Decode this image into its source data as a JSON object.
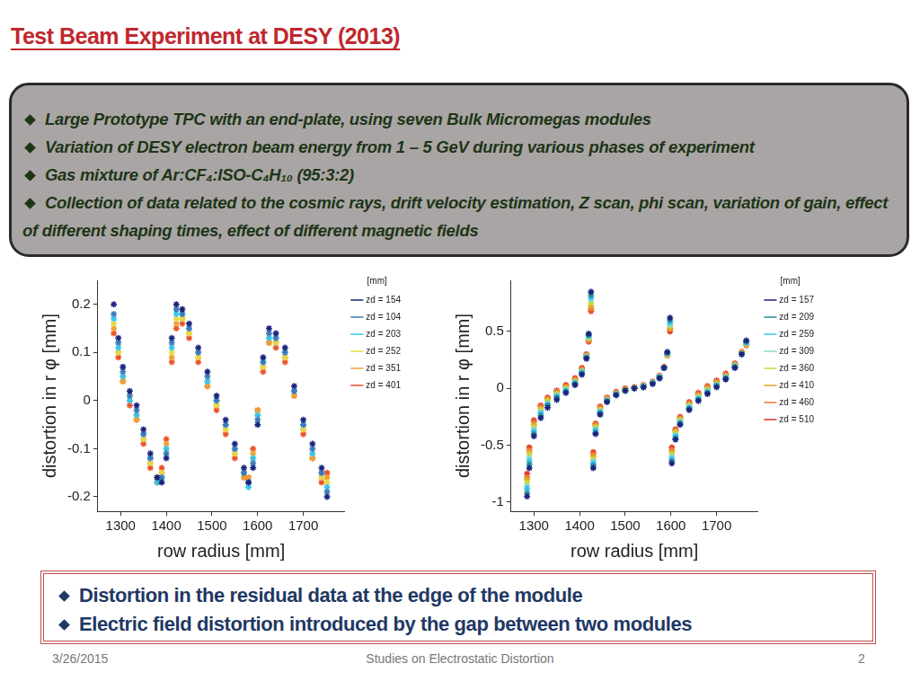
{
  "title": "Test Beam Experiment at DESY (2013)",
  "bullets": [
    "Large Prototype TPC with an end-plate, using seven Bulk Micromegas modules",
    "Variation of DESY electron beam energy from 1 – 5 GeV during various phases of experiment",
    "Gas mixture of Ar:CF₄:ISO-C₄H₁₀ (95:3:2)",
    "Collection of data related to the cosmic rays, drift velocity estimation, Z scan, phi scan, variation of gain, effect of different shaping times, effect of different magnetic fields"
  ],
  "conclusions": [
    "Distortion in the residual data at the edge of the module",
    "Electric field distortion introduced by the gap between two modules"
  ],
  "footer": {
    "date": "3/26/2015",
    "center": "Studies on Electrostatic Distortion",
    "page": "2"
  },
  "chart_data": [
    {
      "type": "scatter",
      "x_label": "row radius [mm]",
      "y_label": "distortion in r φ [mm]",
      "xlim": [
        1250,
        1790
      ],
      "xticks": [
        1300,
        1400,
        1500,
        1600,
        1700
      ],
      "ylim": [
        -0.23,
        0.25
      ],
      "yticks": [
        -0.2,
        -0.1,
        0,
        0.1,
        0.2
      ],
      "grid": false,
      "legend": "right",
      "legend_title": "[mm]",
      "marker": "star",
      "x": [
        1285,
        1295,
        1305,
        1320,
        1335,
        1350,
        1365,
        1380,
        1390,
        1400,
        1412,
        1422,
        1435,
        1450,
        1470,
        1490,
        1510,
        1530,
        1550,
        1570,
        1580,
        1590,
        1600,
        1612,
        1625,
        1640,
        1660,
        1680,
        1700,
        1720,
        1740,
        1752
      ],
      "series": [
        {
          "name": "zd = 154",
          "color": "#1a237e",
          "values": [
            0.2,
            0.13,
            0.07,
            0.02,
            -0.01,
            -0.06,
            -0.11,
            -0.16,
            -0.17,
            -0.12,
            0.13,
            0.2,
            0.19,
            0.16,
            0.11,
            0.06,
            0.01,
            -0.04,
            -0.09,
            -0.14,
            -0.17,
            -0.14,
            -0.05,
            0.09,
            0.15,
            0.14,
            0.11,
            0.03,
            -0.04,
            -0.09,
            -0.14,
            -0.2
          ]
        },
        {
          "name": "zd = 104",
          "color": "#3a7ab8",
          "values": [
            0.18,
            0.12,
            0.06,
            0.01,
            -0.02,
            -0.07,
            -0.12,
            -0.16,
            -0.16,
            -0.11,
            0.12,
            0.19,
            0.18,
            0.15,
            0.1,
            0.05,
            0.0,
            -0.05,
            -0.1,
            -0.15,
            -0.17,
            -0.13,
            -0.04,
            0.08,
            0.14,
            0.13,
            0.1,
            0.02,
            -0.05,
            -0.1,
            -0.15,
            -0.19
          ]
        },
        {
          "name": "zd = 203",
          "color": "#33c4ee",
          "values": [
            0.17,
            0.11,
            0.05,
            0.0,
            -0.03,
            -0.07,
            -0.12,
            -0.17,
            -0.16,
            -0.1,
            0.11,
            0.18,
            0.18,
            0.15,
            0.1,
            0.04,
            0.0,
            -0.05,
            -0.1,
            -0.15,
            -0.18,
            -0.12,
            -0.03,
            0.08,
            0.13,
            0.13,
            0.1,
            0.02,
            -0.05,
            -0.11,
            -0.15,
            -0.18
          ]
        },
        {
          "name": "zd = 252",
          "color": "#e8d844",
          "values": [
            0.16,
            0.1,
            0.05,
            0.01,
            -0.03,
            -0.08,
            -0.13,
            -0.17,
            -0.15,
            -0.1,
            0.1,
            0.17,
            0.17,
            0.14,
            0.09,
            0.04,
            -0.01,
            -0.06,
            -0.11,
            -0.15,
            -0.17,
            -0.12,
            -0.03,
            0.07,
            0.13,
            0.12,
            0.09,
            0.02,
            -0.06,
            -0.11,
            -0.16,
            -0.17
          ]
        },
        {
          "name": "zd = 351",
          "color": "#f0a030",
          "values": [
            0.15,
            0.1,
            0.04,
            0.0,
            -0.04,
            -0.08,
            -0.13,
            -0.16,
            -0.15,
            -0.09,
            0.09,
            0.16,
            0.17,
            0.14,
            0.09,
            0.03,
            -0.01,
            -0.06,
            -0.11,
            -0.16,
            -0.16,
            -0.11,
            -0.02,
            0.07,
            0.12,
            0.12,
            0.09,
            0.01,
            -0.06,
            -0.12,
            -0.16,
            -0.16
          ]
        },
        {
          "name": "zd = 401",
          "color": "#e8532a",
          "values": [
            0.14,
            0.09,
            0.04,
            -0.01,
            -0.04,
            -0.09,
            -0.14,
            -0.17,
            -0.14,
            -0.08,
            0.08,
            0.15,
            0.16,
            0.13,
            0.08,
            0.03,
            -0.02,
            -0.07,
            -0.12,
            -0.16,
            -0.16,
            -0.1,
            -0.02,
            0.06,
            0.12,
            0.11,
            0.08,
            0.01,
            -0.07,
            -0.12,
            -0.17,
            -0.15
          ]
        }
      ]
    },
    {
      "type": "scatter",
      "x_label": "row radius [mm]",
      "y_label": "distortion in r φ [mm]",
      "xlim": [
        1250,
        1790
      ],
      "xticks": [
        1300,
        1400,
        1500,
        1600,
        1700
      ],
      "ylim": [
        -1.08,
        0.95
      ],
      "yticks": [
        -1,
        -0.5,
        0,
        0.5
      ],
      "grid": false,
      "legend": "right",
      "legend_title": "[mm]",
      "marker": "star",
      "x": [
        1285,
        1290,
        1300,
        1315,
        1330,
        1350,
        1370,
        1390,
        1405,
        1415,
        1420,
        1425,
        1430,
        1435,
        1445,
        1460,
        1480,
        1500,
        1520,
        1540,
        1560,
        1575,
        1585,
        1592,
        1598,
        1602,
        1610,
        1620,
        1640,
        1660,
        1680,
        1700,
        1720,
        1740,
        1755,
        1765
      ],
      "series": [
        {
          "name": "zd = 157",
          "color": "#1a237e",
          "values": [
            -0.95,
            -0.7,
            -0.42,
            -0.26,
            -0.17,
            -0.1,
            -0.04,
            0.03,
            0.12,
            0.26,
            0.48,
            0.85,
            -0.7,
            -0.4,
            -0.23,
            -0.12,
            -0.06,
            -0.02,
            0.0,
            0.01,
            0.04,
            0.09,
            0.18,
            0.32,
            0.62,
            -0.66,
            -0.45,
            -0.32,
            -0.19,
            -0.11,
            -0.05,
            0.01,
            0.08,
            0.18,
            0.3,
            0.42
          ]
        },
        {
          "name": "zd = 209",
          "color": "#2a8a9a",
          "values": [
            -0.92,
            -0.67,
            -0.4,
            -0.24,
            -0.15,
            -0.08,
            -0.03,
            0.04,
            0.13,
            0.27,
            0.47,
            0.82,
            -0.68,
            -0.39,
            -0.22,
            -0.11,
            -0.06,
            -0.02,
            0.0,
            0.01,
            0.04,
            0.09,
            0.18,
            0.31,
            0.6,
            -0.64,
            -0.44,
            -0.31,
            -0.18,
            -0.1,
            -0.04,
            0.02,
            0.09,
            0.19,
            0.3,
            0.41
          ]
        },
        {
          "name": "zd = 259",
          "color": "#33c4ee",
          "values": [
            -0.88,
            -0.64,
            -0.38,
            -0.22,
            -0.14,
            -0.07,
            -0.02,
            0.05,
            0.14,
            0.27,
            0.46,
            0.8,
            -0.66,
            -0.37,
            -0.21,
            -0.11,
            -0.05,
            -0.02,
            0.0,
            0.02,
            0.05,
            0.1,
            0.18,
            0.31,
            0.58,
            -0.62,
            -0.42,
            -0.3,
            -0.17,
            -0.09,
            -0.03,
            0.03,
            0.09,
            0.19,
            0.3,
            0.4
          ]
        },
        {
          "name": "zd = 309",
          "color": "#88d8d0",
          "values": [
            -0.86,
            -0.61,
            -0.36,
            -0.21,
            -0.13,
            -0.06,
            -0.01,
            0.05,
            0.15,
            0.28,
            0.45,
            0.78,
            -0.64,
            -0.36,
            -0.2,
            -0.1,
            -0.05,
            -0.02,
            0.0,
            0.02,
            0.05,
            0.1,
            0.18,
            0.3,
            0.56,
            -0.6,
            -0.41,
            -0.29,
            -0.16,
            -0.08,
            -0.02,
            0.03,
            0.1,
            0.2,
            0.3,
            0.4
          ]
        },
        {
          "name": "zd = 360",
          "color": "#d4d433",
          "values": [
            -0.83,
            -0.58,
            -0.34,
            -0.19,
            -0.11,
            -0.05,
            0.0,
            0.06,
            0.15,
            0.28,
            0.44,
            0.75,
            -0.62,
            -0.34,
            -0.19,
            -0.1,
            -0.05,
            -0.02,
            0.0,
            0.02,
            0.05,
            0.1,
            0.18,
            0.3,
            0.55,
            -0.58,
            -0.39,
            -0.28,
            -0.15,
            -0.07,
            -0.01,
            0.04,
            0.1,
            0.2,
            0.31,
            0.39
          ]
        },
        {
          "name": "zd = 410",
          "color": "#dda522",
          "values": [
            -0.8,
            -0.56,
            -0.32,
            -0.18,
            -0.1,
            -0.04,
            0.01,
            0.07,
            0.16,
            0.29,
            0.43,
            0.72,
            -0.6,
            -0.33,
            -0.18,
            -0.09,
            -0.04,
            -0.01,
            0.0,
            0.02,
            0.05,
            0.1,
            0.18,
            0.29,
            0.53,
            -0.56,
            -0.38,
            -0.27,
            -0.14,
            -0.06,
            0.0,
            0.05,
            0.11,
            0.21,
            0.31,
            0.39
          ]
        },
        {
          "name": "zd = 460",
          "color": "#ee7733",
          "values": [
            -0.78,
            -0.54,
            -0.3,
            -0.16,
            -0.09,
            -0.03,
            0.02,
            0.08,
            0.17,
            0.29,
            0.42,
            0.7,
            -0.58,
            -0.32,
            -0.17,
            -0.09,
            -0.04,
            -0.01,
            0.01,
            0.03,
            0.06,
            0.11,
            0.18,
            0.29,
            0.52,
            -0.54,
            -0.37,
            -0.26,
            -0.13,
            -0.05,
            0.01,
            0.06,
            0.12,
            0.21,
            0.31,
            0.38
          ]
        },
        {
          "name": "zd = 510",
          "color": "#dd3322",
          "values": [
            -0.75,
            -0.52,
            -0.28,
            -0.15,
            -0.08,
            -0.02,
            0.03,
            0.09,
            0.18,
            0.3,
            0.41,
            0.68,
            -0.56,
            -0.31,
            -0.16,
            -0.08,
            -0.03,
            0.0,
            0.01,
            0.03,
            0.06,
            0.11,
            0.19,
            0.29,
            0.5,
            -0.52,
            -0.36,
            -0.25,
            -0.12,
            -0.04,
            0.02,
            0.07,
            0.13,
            0.22,
            0.32,
            0.38
          ]
        }
      ]
    }
  ]
}
